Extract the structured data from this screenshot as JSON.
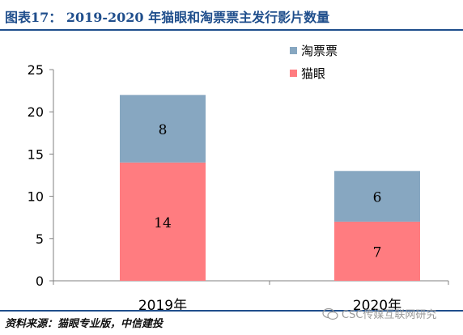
{
  "header": {
    "title": "图表17： 2019-2020 年猫眼和淘票票主发行影片数量"
  },
  "footer": {
    "source": "资料来源：猫眼专业版，中信建投"
  },
  "watermark": {
    "text": "CSC传媒互联网研究",
    "icon": "wechat-icon"
  },
  "colors": {
    "maoyan": "#ff7c80",
    "taopiaopiao": "#87a7c1",
    "accent": "#1f4e8c"
  },
  "chart_data": {
    "type": "bar",
    "stacked": true,
    "categories": [
      "2019年",
      "2020年"
    ],
    "series": [
      {
        "name": "猫眼",
        "values": [
          14,
          7
        ],
        "color": "#ff7c80"
      },
      {
        "name": "淘票票",
        "values": [
          8,
          6
        ],
        "color": "#87a7c1"
      }
    ],
    "ylim": [
      0,
      25
    ],
    "yticks": [
      0,
      5,
      10,
      15,
      20,
      25
    ],
    "data_labels": true,
    "legend_position": "top-right",
    "grid": false
  }
}
